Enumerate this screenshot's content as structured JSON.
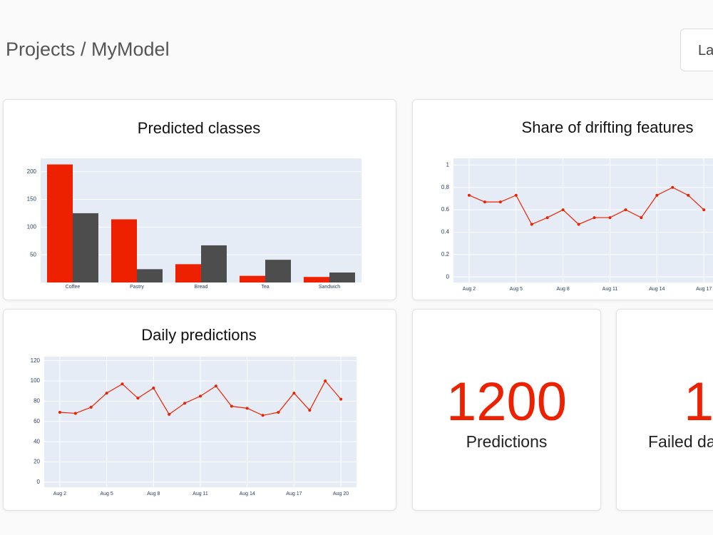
{
  "header": {
    "title": "Projects / MyModel",
    "button": "La"
  },
  "chart_data": [
    {
      "type": "bar",
      "title": "Predicted classes",
      "categories": [
        "Coffee",
        "Pastry",
        "Bread",
        "Tea",
        "Sandwich"
      ],
      "series": [
        {
          "color": "#ed2100",
          "values": [
            213,
            114,
            33,
            12,
            10
          ]
        },
        {
          "color": "#4d4d4d",
          "values": [
            125,
            24,
            67,
            41,
            18
          ]
        }
      ],
      "ylim": [
        0,
        224
      ],
      "yticks": [
        50,
        100,
        150,
        200
      ],
      "grid": true
    },
    {
      "type": "line",
      "title": "Share of drifting features",
      "x": [
        "Aug 2",
        "Aug 3",
        "Aug 4",
        "Aug 5",
        "Aug 6",
        "Aug 7",
        "Aug 8",
        "Aug 9",
        "Aug 10",
        "Aug 11",
        "Aug 12",
        "Aug 13",
        "Aug 14",
        "Aug 15",
        "Aug 16",
        "Aug 17"
      ],
      "series": [
        {
          "color": "#ed2100",
          "values": [
            0.73,
            0.67,
            0.67,
            0.73,
            0.47,
            0.53,
            0.6,
            0.47,
            0.53,
            0.53,
            0.6,
            0.53,
            0.73,
            0.8,
            0.73,
            0.6
          ]
        }
      ],
      "xlim": [
        "Aug 1",
        "Aug 21"
      ],
      "xticks": [
        "Aug 2",
        "Aug 5",
        "Aug 8",
        "Aug 11",
        "Aug 14",
        "Aug 17"
      ],
      "ylim": [
        -0.05,
        1.06
      ],
      "yticks": [
        0,
        0.2,
        0.4,
        0.6,
        0.8,
        1
      ],
      "grid": true
    },
    {
      "type": "line",
      "title": "Daily predictions",
      "x": [
        "Aug 2",
        "Aug 3",
        "Aug 4",
        "Aug 5",
        "Aug 6",
        "Aug 7",
        "Aug 8",
        "Aug 9",
        "Aug 10",
        "Aug 11",
        "Aug 12",
        "Aug 13",
        "Aug 14",
        "Aug 15",
        "Aug 16",
        "Aug 17",
        "Aug 18",
        "Aug 19",
        "Aug 20"
      ],
      "series": [
        {
          "color": "#ed2100",
          "values": [
            69,
            68,
            74,
            88,
            97,
            83,
            93,
            67,
            78,
            85,
            95,
            75,
            73,
            66,
            69,
            88,
            71,
            100,
            82
          ]
        }
      ],
      "xlim": [
        "Aug 1",
        "Aug 21"
      ],
      "xticks": [
        "Aug 2",
        "Aug 5",
        "Aug 8",
        "Aug 11",
        "Aug 14",
        "Aug 17",
        "Aug 20"
      ],
      "ylim": [
        -5,
        124
      ],
      "yticks": [
        0,
        20,
        40,
        60,
        80,
        100,
        120
      ],
      "grid": true
    }
  ],
  "stats": [
    {
      "value": 1200,
      "label": "Predictions"
    },
    {
      "value": 1,
      "label": "Failed da"
    }
  ]
}
